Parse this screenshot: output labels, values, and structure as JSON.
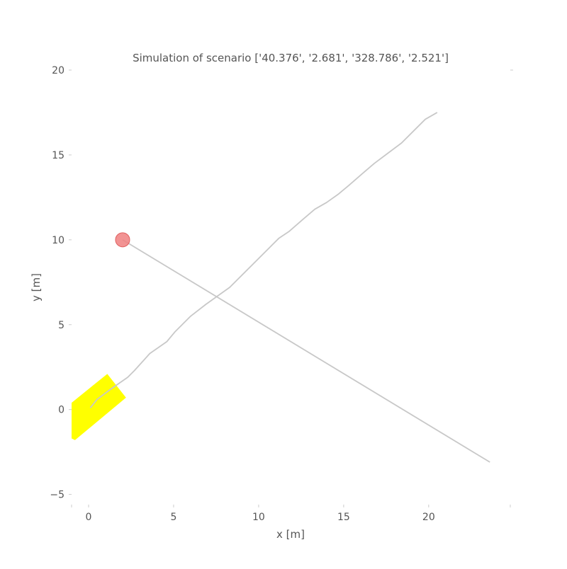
{
  "chart_data": {
    "type": "line",
    "title": "Simulation of scenario ['40.376', '2.681', '328.786', '2.521']",
    "xlabel": "x [m]",
    "ylabel": "y [m]",
    "xlim": [
      -1,
      24.8
    ],
    "ylim": [
      -5.6,
      20
    ],
    "grid": false,
    "x_ticks": [
      {
        "value": 0,
        "label": "0"
      },
      {
        "value": 5,
        "label": "5"
      },
      {
        "value": 10,
        "label": "10"
      },
      {
        "value": 15,
        "label": "15"
      },
      {
        "value": 20,
        "label": "20"
      }
    ],
    "y_ticks": [
      {
        "value": -5,
        "label": "−5"
      },
      {
        "value": 0,
        "label": "0"
      },
      {
        "value": 5,
        "label": "5"
      },
      {
        "value": 10,
        "label": "10"
      },
      {
        "value": 15,
        "label": "15"
      },
      {
        "value": 20,
        "label": "20"
      }
    ],
    "series": [
      {
        "color": "#c8c8c8",
        "points": [
          [
            0.1,
            0.1
          ],
          [
            0.5,
            0.6
          ],
          [
            1.3,
            1.2
          ],
          [
            2.3,
            1.9
          ],
          [
            2.7,
            2.3
          ],
          [
            3.6,
            3.3
          ],
          [
            4.6,
            4.0
          ],
          [
            5.1,
            4.6
          ],
          [
            6.0,
            5.5
          ],
          [
            6.9,
            6.2
          ],
          [
            7.6,
            6.7
          ],
          [
            8.3,
            7.2
          ],
          [
            8.9,
            7.8
          ],
          [
            9.5,
            8.4
          ],
          [
            10.0,
            8.9
          ],
          [
            10.6,
            9.5
          ],
          [
            11.2,
            10.1
          ],
          [
            11.8,
            10.5
          ],
          [
            12.6,
            11.2
          ],
          [
            13.3,
            11.8
          ],
          [
            14.0,
            12.2
          ],
          [
            14.7,
            12.7
          ],
          [
            15.3,
            13.2
          ],
          [
            16.1,
            13.9
          ],
          [
            16.8,
            14.5
          ],
          [
            17.6,
            15.1
          ],
          [
            18.4,
            15.7
          ],
          [
            19.2,
            16.5
          ],
          [
            19.8,
            17.1
          ],
          [
            20.5,
            17.5
          ]
        ]
      },
      {
        "color": "#c8c8c8",
        "points": [
          [
            2.0,
            10.0
          ],
          [
            23.6,
            -3.1
          ]
        ]
      }
    ],
    "markers": [
      {
        "shape": "circle",
        "color": "#f08080",
        "x": 2.0,
        "y": 10.0
      }
    ],
    "polygons": [
      {
        "color": "#ffff00",
        "points": [
          [
            -1.0,
            0.4
          ],
          [
            1.1,
            2.1
          ],
          [
            2.2,
            0.7
          ],
          [
            -0.8,
            -1.8
          ],
          [
            -1.0,
            -1.7
          ]
        ]
      }
    ]
  }
}
